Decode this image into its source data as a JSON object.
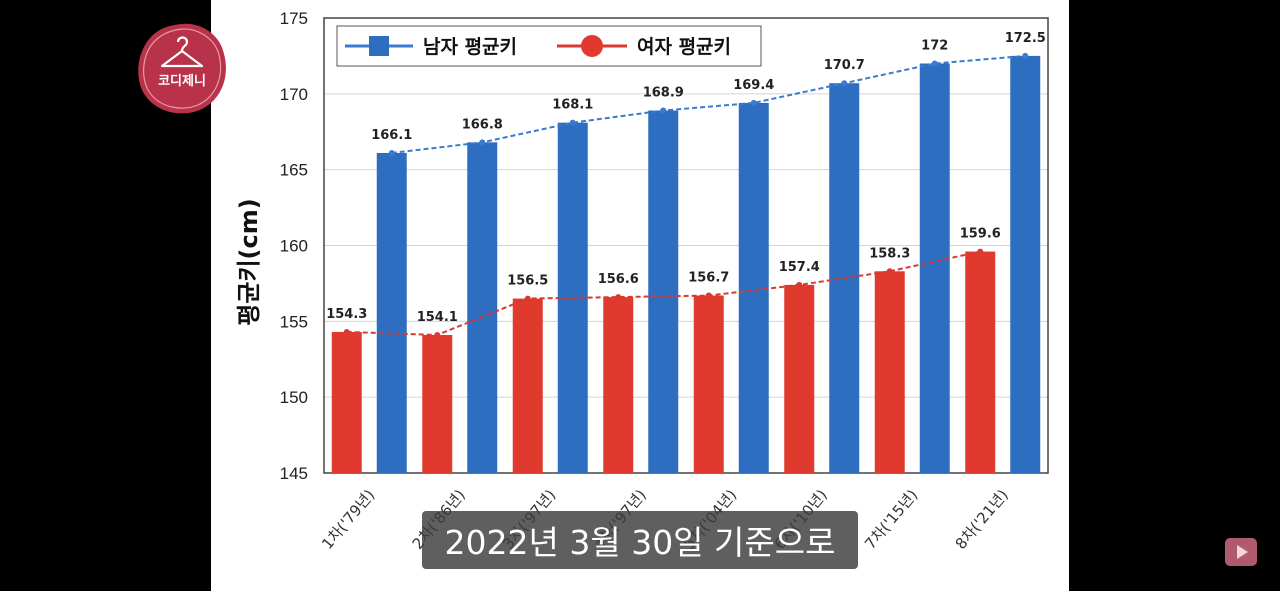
{
  "overlay": {
    "channel_logo_text": "코디제니",
    "subtitle": "2022년 3월 30일 기준으로"
  },
  "colors": {
    "male": "#2e6ec0",
    "female": "#e03a2e",
    "male_line": "#3a7ad0",
    "female_line": "#d83a30"
  },
  "icons": {
    "logo": "hanger-seal-icon",
    "youtube": "youtube-play-icon"
  },
  "chart_data": {
    "type": "bar",
    "title": "",
    "xlabel": "",
    "ylabel": "평균키(cm)",
    "ylim": [
      145,
      175
    ],
    "yticks": [
      145,
      150,
      155,
      160,
      165,
      170,
      175
    ],
    "grid": true,
    "legend_position": "top-left",
    "categories": [
      "1차('79년)",
      "2차('86년)",
      "3차('97년)",
      "4차('97년)",
      "5차('04년)",
      "6차('10년)",
      "7차('15년)",
      "8차('21년)"
    ],
    "series": [
      {
        "name": "남자 평균키",
        "values": [
          166.1,
          166.8,
          168.1,
          168.9,
          169.4,
          170.7,
          172,
          172.5
        ]
      },
      {
        "name": "여자 평균키",
        "values": [
          154.3,
          154.1,
          156.5,
          156.6,
          156.7,
          157.4,
          158.3,
          159.6
        ]
      }
    ]
  }
}
